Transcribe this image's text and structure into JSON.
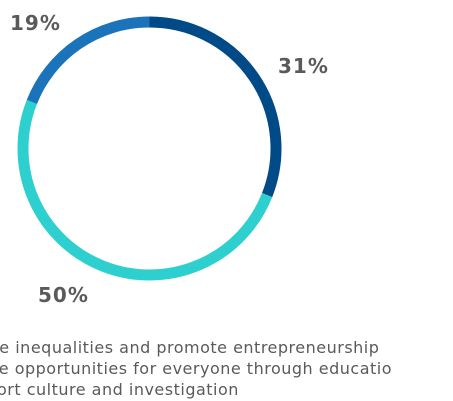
{
  "chart_data": {
    "type": "pie",
    "variant": "donut",
    "slices": [
      {
        "label": "Create opportunities for everyone through education",
        "value": 31,
        "display": "31%",
        "color": "#004A87"
      },
      {
        "label": "Support culture and investigation",
        "value": 50,
        "display": "50%",
        "color": "#2ECFCF"
      },
      {
        "label": "Reduce inequalities and promote entrepreneurship",
        "value": 19,
        "display": "19%",
        "color": "#1B73BA"
      }
    ],
    "legend": [
      "Reduce inequalities and promote entrepreneurship",
      "Create opportunities for everyone through education",
      "Support culture and investigation"
    ],
    "legend_visible": [
      "ce inequalities and promote entrepreneurship",
      "te opportunities for everyone through educatio",
      "ort culture and investigation"
    ],
    "legend_position": "bottom"
  }
}
